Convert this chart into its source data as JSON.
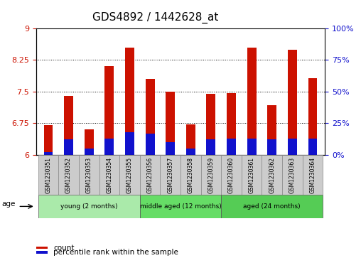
{
  "title": "GDS4892 / 1442628_at",
  "samples": [
    "GSM1230351",
    "GSM1230352",
    "GSM1230353",
    "GSM1230354",
    "GSM1230355",
    "GSM1230356",
    "GSM1230357",
    "GSM1230358",
    "GSM1230359",
    "GSM1230360",
    "GSM1230361",
    "GSM1230362",
    "GSM1230363",
    "GSM1230364"
  ],
  "count_values": [
    6.7,
    7.4,
    6.6,
    8.1,
    8.55,
    7.8,
    7.5,
    6.72,
    7.45,
    7.47,
    8.55,
    7.18,
    8.5,
    7.82
  ],
  "percentile_values": [
    2,
    12,
    5,
    13,
    18,
    17,
    10,
    5,
    12,
    13,
    13,
    12,
    13,
    13
  ],
  "y_min": 6.0,
  "y_max": 9.0,
  "y_ticks": [
    6,
    6.75,
    7.5,
    8.25,
    9
  ],
  "y_right_ticks": [
    0,
    25,
    50,
    75,
    100
  ],
  "bar_color_red": "#cc1100",
  "bar_color_blue": "#1111cc",
  "groups": [
    {
      "label": "young (2 months)",
      "start": 0,
      "end": 5,
      "color": "#aaeaaa"
    },
    {
      "label": "middle aged (12 months)",
      "start": 5,
      "end": 9,
      "color": "#66dd66"
    },
    {
      "label": "aged (24 months)",
      "start": 9,
      "end": 14,
      "color": "#55cc55"
    }
  ],
  "sample_box_color": "#cccccc",
  "legend_count": "count",
  "legend_percentile": "percentile rank within the sample",
  "title_fontsize": 11,
  "tick_fontsize": 8
}
